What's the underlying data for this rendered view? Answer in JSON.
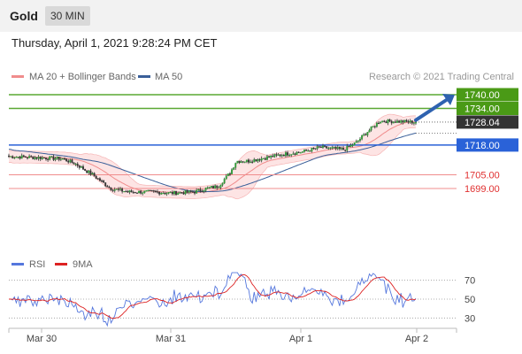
{
  "header": {
    "instrument": "Gold",
    "timeframe": "30 MIN"
  },
  "timestamp": "Thursday, April 1, 2021 9:28:24 PM CET",
  "chart_data": {
    "type": "candlestick",
    "legend": [
      {
        "label": "MA 20 + Bollinger Bands",
        "color": "#f08c8c"
      },
      {
        "label": "MA 50",
        "color": "#3a5f99"
      }
    ],
    "credit": "Research © 2021 Trading Central",
    "y_range": [
      1690,
      1745
    ],
    "x_ticks": [
      "Mar 30",
      "Mar 31",
      "Apr 1",
      "Apr 2"
    ],
    "current_price": {
      "value": 1728.04,
      "label": "1728.04"
    },
    "levels": [
      {
        "value": 1740.0,
        "label": "1740.00",
        "kind": "resistance-green"
      },
      {
        "value": 1734.0,
        "label": "1734.00",
        "kind": "resistance-green"
      },
      {
        "value": 1718.0,
        "label": "1718.00",
        "kind": "pivot-blue"
      },
      {
        "value": 1705.0,
        "label": "1705.00",
        "kind": "support-red"
      },
      {
        "value": 1699.0,
        "label": "1699.00",
        "kind": "support-red"
      }
    ],
    "forecast_arrow": {
      "from": 1728.5,
      "to": 1740.0
    },
    "rsi": {
      "legend": [
        {
          "label": "RSI",
          "color": "#5577dd"
        },
        {
          "label": "9MA",
          "color": "#dd2222"
        }
      ],
      "range": [
        20,
        80
      ],
      "levels": [
        {
          "value": 70,
          "label": "70"
        },
        {
          "value": 50,
          "label": "50"
        },
        {
          "value": 30,
          "label": "30"
        }
      ]
    }
  }
}
